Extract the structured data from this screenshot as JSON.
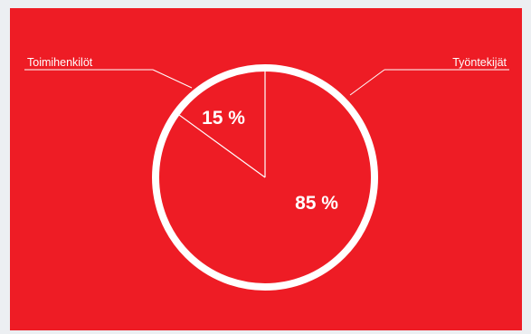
{
  "chart_data": {
    "type": "pie",
    "slices": [
      {
        "label": "Toimihenkilöt",
        "value": 15,
        "value_label": "15 %"
      },
      {
        "label": "Työntekijät",
        "value": 85,
        "value_label": "85 %"
      }
    ],
    "start_angle_deg": 0,
    "direction": "counter-clockwise",
    "legend": "callouts"
  },
  "colors": {
    "page_background": "#eceff2",
    "panel_background": "#ee1c25",
    "slice_fill": "#ee1c25",
    "lines_and_text": "#ffffff"
  }
}
